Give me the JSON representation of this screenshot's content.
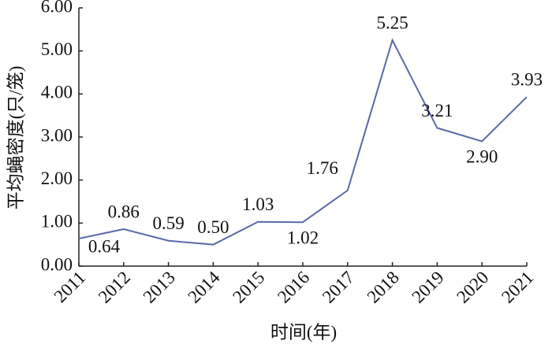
{
  "chart_data": {
    "type": "line",
    "y_label": "平均蝇密度(只/笼)",
    "x_label": "时间(年)",
    "categories": [
      "2011",
      "2012",
      "2013",
      "2014",
      "2015",
      "2016",
      "2017",
      "2018",
      "2019",
      "2020",
      "2021"
    ],
    "values": [
      0.64,
      0.86,
      0.59,
      0.5,
      1.03,
      1.02,
      1.76,
      5.25,
      3.21,
      2.9,
      3.93
    ],
    "value_labels": [
      "0.64",
      "0.86",
      "0.59",
      "0.50",
      "1.03",
      "1.02",
      "1.76",
      "5.25",
      "3.21",
      "2.90",
      "3.93"
    ],
    "color": "#5b6aa6",
    "ylim": [
      0,
      6
    ],
    "yticks": [
      {
        "value": 0,
        "label": "0.00"
      },
      {
        "value": 1,
        "label": "1.00"
      },
      {
        "value": 2,
        "label": "2.00"
      },
      {
        "value": 3,
        "label": "3.00"
      },
      {
        "value": 4,
        "label": "4.00"
      },
      {
        "value": 5,
        "label": "5.00"
      },
      {
        "value": 6,
        "label": "6.00"
      }
    ]
  }
}
